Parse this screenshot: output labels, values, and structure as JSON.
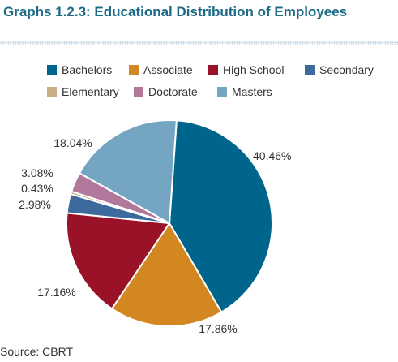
{
  "title": "Graphs 1.2.3: Educational Distribution of Employees",
  "source": "Source: CBRT",
  "chart_data": {
    "type": "pie",
    "title": "Graphs 1.2.3: Educational Distribution of Employees",
    "legend_position": "top",
    "slices": [
      {
        "label": "Bachelors",
        "value": 40.46,
        "value_label": "40.46%",
        "color": "#00658c"
      },
      {
        "label": "Associate",
        "value": 17.86,
        "value_label": "17.86%",
        "color": "#d28721"
      },
      {
        "label": "High School",
        "value": 17.16,
        "value_label": "17.16%",
        "color": "#9a1228"
      },
      {
        "label": "Secondary",
        "value": 2.98,
        "value_label": "2.98%",
        "color": "#3d6a9c"
      },
      {
        "label": "Elementary",
        "value": 0.43,
        "value_label": "0.43%",
        "color": "#c9ad84"
      },
      {
        "label": "Doctorate",
        "value": 3.08,
        "value_label": "3.08%",
        "color": "#b1789b"
      },
      {
        "label": "Masters",
        "value": 18.04,
        "value_label": "18.04%",
        "color": "#74a6c4"
      }
    ]
  }
}
